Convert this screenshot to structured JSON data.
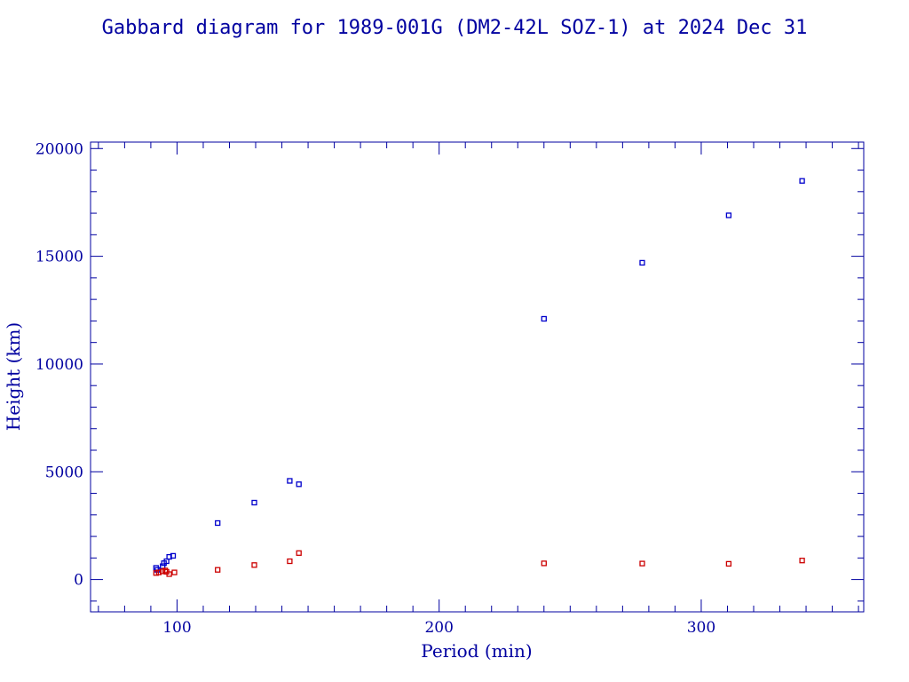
{
  "chart_data": {
    "type": "scatter",
    "title": "Gabbard diagram for 1989-001G (DM2-42L SOZ-1) at 2024 Dec 31",
    "xlabel": "Period (min)",
    "ylabel": "Height (km)",
    "xlim": [
      67,
      362
    ],
    "ylim": [
      -1500,
      20300
    ],
    "xticks": [
      100,
      200,
      300
    ],
    "yticks": [
      0,
      5000,
      10000,
      15000,
      20000
    ],
    "grid": false,
    "axis_color": "#0000a0",
    "series": [
      {
        "color": "#0000cc",
        "points": [
          [
            92,
            540
          ],
          [
            92.5,
            450
          ],
          [
            94.5,
            620
          ],
          [
            95,
            760
          ],
          [
            96,
            850
          ],
          [
            97,
            1050
          ],
          [
            98.5,
            1100
          ],
          [
            115.5,
            2620
          ],
          [
            129.5,
            3570
          ],
          [
            143,
            4580
          ],
          [
            146.5,
            4420
          ],
          [
            240,
            12100
          ],
          [
            277.5,
            14700
          ],
          [
            310.5,
            16900
          ],
          [
            338.5,
            18500
          ]
        ]
      },
      {
        "color": "#cc0000",
        "points": [
          [
            92,
            300
          ],
          [
            93,
            330
          ],
          [
            94.5,
            380
          ],
          [
            95.5,
            420
          ],
          [
            96,
            360
          ],
          [
            97,
            250
          ],
          [
            99,
            330
          ],
          [
            115.5,
            450
          ],
          [
            129.5,
            670
          ],
          [
            143,
            850
          ],
          [
            146.5,
            1230
          ],
          [
            240,
            750
          ],
          [
            277.5,
            740
          ],
          [
            310.5,
            730
          ],
          [
            338.5,
            880
          ]
        ]
      }
    ]
  }
}
